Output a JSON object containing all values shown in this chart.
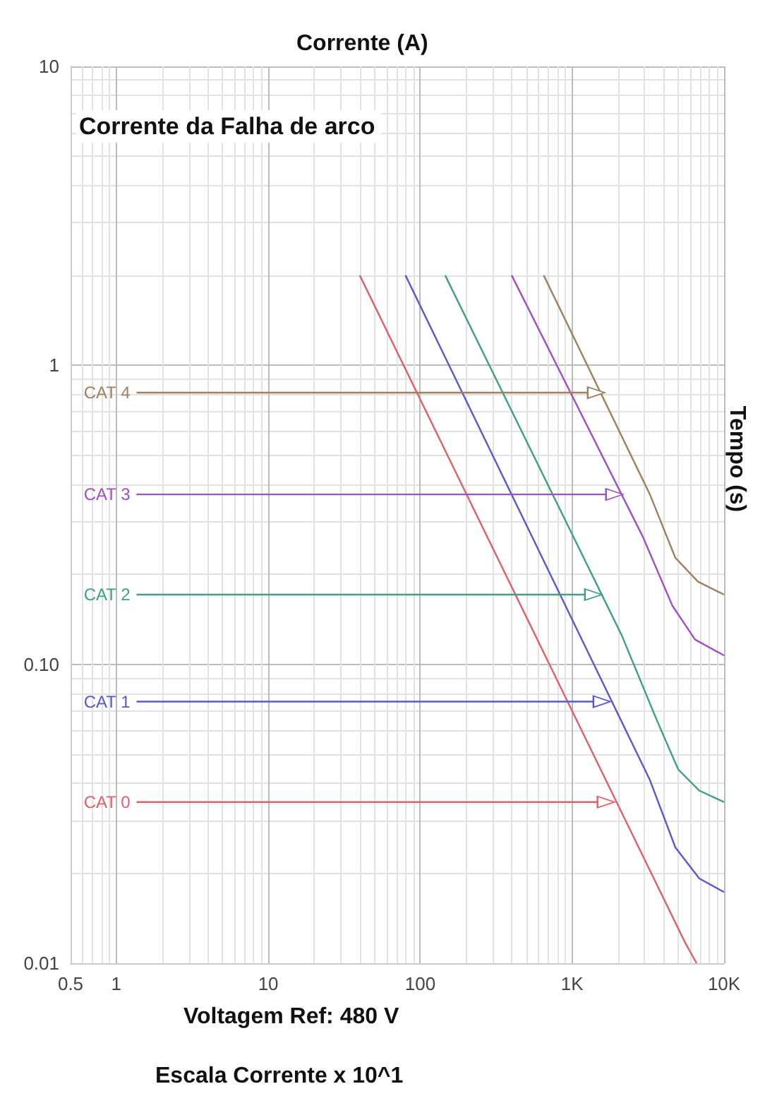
{
  "chart_data": {
    "type": "line",
    "xlabel": "Corrente (A)",
    "ylabel": "Tempo (s)",
    "annotations": [
      "Corrente da Falha de arco",
      "Voltagem Ref: 480 V",
      "Escala Corrente x 10^1"
    ],
    "log": "xy",
    "grid": true,
    "legend": "left",
    "marker": "none",
    "line_style": "solid",
    "xlim": [
      0.5,
      10000
    ],
    "ylim": [
      0.01,
      10
    ],
    "xticks": [
      0.5,
      1,
      10,
      100,
      {
        "value": 1000,
        "label": "1K"
      },
      {
        "value": 10000,
        "label": "10K"
      }
    ],
    "yticks": [
      0.01,
      {
        "value": 0.1,
        "label": "0.10"
      },
      1,
      10
    ],
    "series": [
      {
        "color": "#e0606a",
        "x": [
          40,
          5550,
          6590
        ],
        "values": [
          2,
          0.0117,
          0.01
        ]
      },
      {
        "color": "#5858d0",
        "x": [
          80,
          3250,
          4780,
          6870,
          10000
        ],
        "values": [
          2,
          0.041,
          0.0244,
          0.0192,
          0.0173
        ]
      },
      {
        "color": "#40a080",
        "x": [
          146,
          2120,
          3610,
          4990,
          6870,
          10000
        ],
        "values": [
          2,
          0.125,
          0.065,
          0.0445,
          0.0378,
          0.0346
        ]
      },
      {
        "color": "#a050c0",
        "x": [
          400,
          2920,
          4570,
          6440,
          10000
        ],
        "values": [
          2,
          0.267,
          0.157,
          0.121,
          0.107
        ]
      },
      {
        "color": "#a08060",
        "x": [
          650,
          3250,
          4780,
          6730,
          10000
        ],
        "values": [
          2,
          0.37,
          0.227,
          0.189,
          0.171
        ]
      },
      {
        "marker": "triangle",
        "name": "CAT 4",
        "color": "#a08060",
        "x": [
          1.36,
          1440
        ],
        "values": [
          0.81,
          0.81
        ]
      },
      {
        "marker": "triangle",
        "name": "CAT 3",
        "color": "#a050c0",
        "x": [
          1.36,
          1900
        ],
        "values": [
          0.37,
          0.37
        ]
      },
      {
        "marker": "triangle",
        "name": "CAT 2",
        "color": "#40a080",
        "x": [
          1.36,
          1380
        ],
        "values": [
          0.171,
          0.171
        ]
      },
      {
        "marker": "triangle",
        "name": "CAT 1",
        "color": "#5858d0",
        "x": [
          1.36,
          1570
        ],
        "values": [
          0.075,
          0.075
        ]
      },
      {
        "marker": "triangle",
        "name": "CAT 0",
        "color": "#e0606a",
        "x": [
          1.36,
          1670
        ],
        "values": [
          0.0346,
          0.0346
        ]
      }
    ]
  }
}
